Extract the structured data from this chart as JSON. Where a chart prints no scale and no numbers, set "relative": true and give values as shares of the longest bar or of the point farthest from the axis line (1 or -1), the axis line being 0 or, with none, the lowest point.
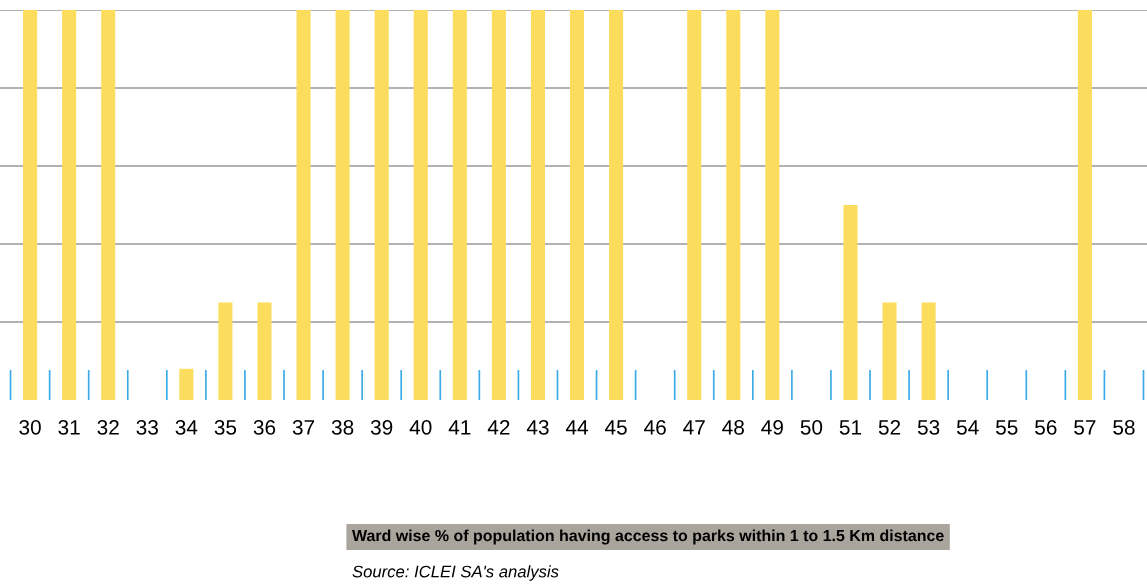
{
  "chart_data": {
    "type": "bar",
    "title": "Ward wise % of population having access to parks within 1 to 1.5 Km distance",
    "annotations": [
      "Source: ICLEI SA's analysis"
    ],
    "categories": [
      "30",
      "31",
      "32",
      "33",
      "34",
      "35",
      "36",
      "37",
      "38",
      "39",
      "40",
      "41",
      "42",
      "43",
      "44",
      "45",
      "46",
      "47",
      "48",
      "49",
      "50",
      "51",
      "52",
      "53",
      "54",
      "55",
      "56",
      "57",
      "58"
    ],
    "values": [
      1,
      1,
      1,
      0,
      0.08,
      0.25,
      0.25,
      1,
      1,
      1,
      1,
      1,
      1,
      1,
      1,
      1,
      0,
      1,
      1,
      1,
      0,
      0.5,
      0.25,
      0.25,
      0,
      0,
      0,
      1,
      0
    ],
    "color": "#fbdc5c",
    "relative": true,
    "grid": "y",
    "tick_labels": "x"
  }
}
